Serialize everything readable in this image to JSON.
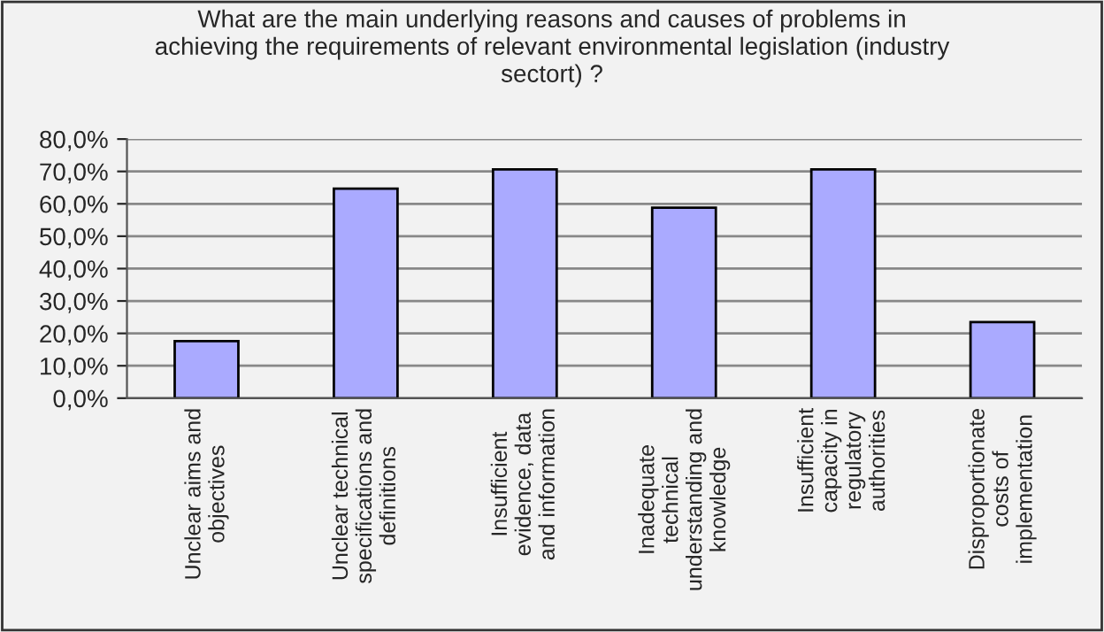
{
  "chart_data": {
    "type": "bar",
    "title": "What are the main underlying reasons and causes of problems in\nachieving the requirements of relevant environmental legislation (industry\nsectort) ?",
    "categories": [
      "Unclear aims and\nobjectives",
      "Unclear technical\nspecifications and\ndefinitions",
      "Insufficient\nevidence, data\nand information",
      "Inadequate\ntechnical\nunderstanding and\nknowledge",
      "Insufficient\ncapacity in\nregulatory\nauthorities",
      "Disproportionate\ncosts of\nimplementation"
    ],
    "values": [
      17.6,
      64.7,
      70.6,
      58.8,
      70.6,
      23.5
    ],
    "color": "#aaaaff",
    "ylim": [
      0,
      80
    ],
    "yticks": [
      {
        "value": 0,
        "label": "0,0%"
      },
      {
        "value": 10,
        "label": "10,0%"
      },
      {
        "value": 20,
        "label": "20,0%"
      },
      {
        "value": 30,
        "label": "30,0%"
      },
      {
        "value": 40,
        "label": "40,0%"
      },
      {
        "value": 50,
        "label": "50,0%"
      },
      {
        "value": 60,
        "label": "60,0%"
      },
      {
        "value": 70,
        "label": "70,0%"
      },
      {
        "value": 80,
        "label": "80,0%"
      }
    ],
    "grid": "y"
  }
}
